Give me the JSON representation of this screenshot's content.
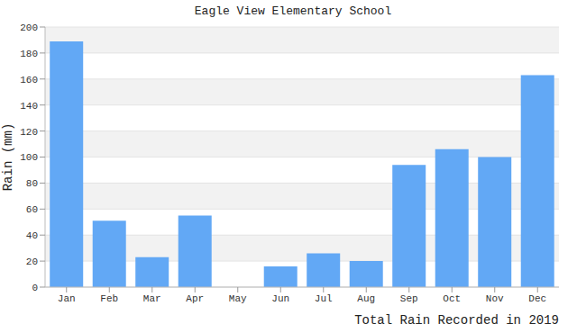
{
  "chart_data": {
    "type": "bar",
    "title": "Eagle View Elementary School",
    "x_label": "Total Rain Recorded in 2019",
    "y_label": "Rain (mm)",
    "categories": [
      "Jan",
      "Feb",
      "Mar",
      "Apr",
      "May",
      "Jun",
      "Jul",
      "Aug",
      "Sep",
      "Oct",
      "Nov",
      "Dec"
    ],
    "values": [
      189,
      51,
      23,
      55,
      0,
      16,
      26,
      20,
      94,
      106,
      100,
      163
    ],
    "color": "#62a8f5",
    "ylim": [
      0,
      200
    ],
    "yticks": [
      0,
      20,
      40,
      60,
      80,
      100,
      120,
      140,
      160,
      180,
      200
    ],
    "grid": true
  }
}
